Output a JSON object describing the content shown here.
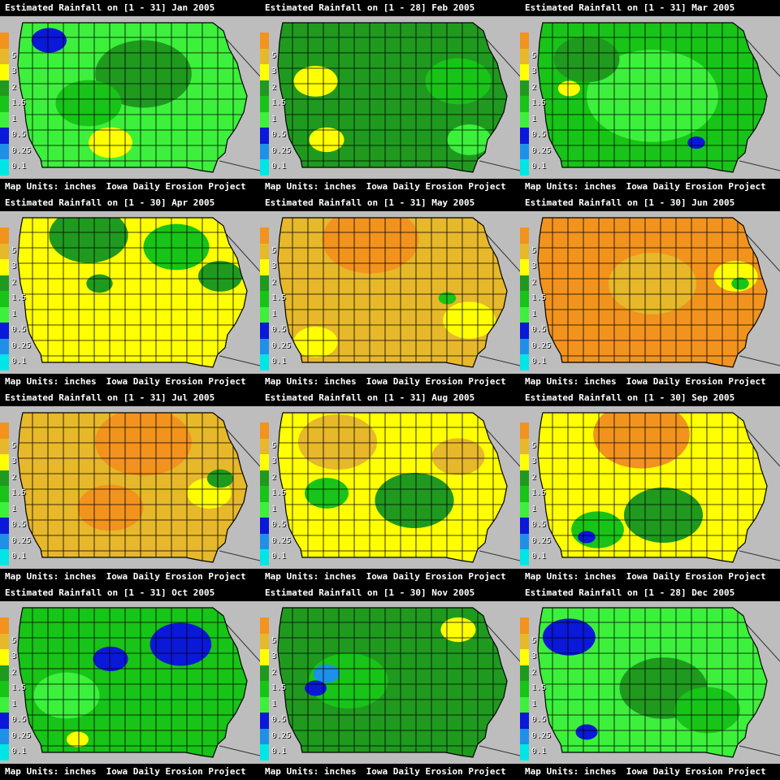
{
  "legend": {
    "levels": [
      {
        "label": "",
        "color": "#f2931e"
      },
      {
        "label": "5",
        "color": "#e6b82a"
      },
      {
        "label": "3",
        "color": "#ffff00"
      },
      {
        "label": "2",
        "color": "#1f9a1f"
      },
      {
        "label": "1.5",
        "color": "#17c417"
      },
      {
        "label": "1",
        "color": "#3cf03c"
      },
      {
        "label": "0.5",
        "color": "#0a18d8"
      },
      {
        "label": "0.25",
        "color": "#1e90e8"
      },
      {
        "label": "0.1",
        "color": "#00e6e6"
      }
    ]
  },
  "footer": {
    "units": "Map Units: inches",
    "project": "Iowa Daily Erosion Project"
  },
  "colors": {
    "background": "#000000",
    "outside": "#bdbdbd",
    "county_lines": "#000000"
  },
  "panels": [
    {
      "title": "Estimated Rainfall on [1 - 31] Jan 2005",
      "dominant": "#3cf03c",
      "patches": [
        [
          "#1f9a1f",
          0.55,
          0.35,
          0.22
        ],
        [
          "#0a18d8",
          0.12,
          0.12,
          0.08
        ],
        [
          "#ffff00",
          0.4,
          0.82,
          0.1
        ],
        [
          "#17c417",
          0.3,
          0.55,
          0.15
        ]
      ]
    },
    {
      "title": "Estimated Rainfall on [1 - 28] Feb 2005",
      "dominant": "#1f9a1f",
      "patches": [
        [
          "#17c417",
          0.8,
          0.4,
          0.15
        ],
        [
          "#ffff00",
          0.15,
          0.4,
          0.1
        ],
        [
          "#ffff00",
          0.2,
          0.8,
          0.08
        ],
        [
          "#3cf03c",
          0.85,
          0.8,
          0.1
        ]
      ]
    },
    {
      "title": "Estimated Rainfall on [1 - 31] Mar 2005",
      "dominant": "#17c417",
      "patches": [
        [
          "#3cf03c",
          0.5,
          0.5,
          0.3
        ],
        [
          "#1f9a1f",
          0.2,
          0.25,
          0.15
        ],
        [
          "#ffff00",
          0.12,
          0.45,
          0.05
        ],
        [
          "#0a18d8",
          0.7,
          0.82,
          0.04
        ]
      ]
    },
    {
      "title": "Estimated Rainfall on [1 - 30] Apr 2005",
      "dominant": "#ffff00",
      "patches": [
        [
          "#1f9a1f",
          0.3,
          0.12,
          0.18
        ],
        [
          "#17c417",
          0.7,
          0.2,
          0.15
        ],
        [
          "#1f9a1f",
          0.9,
          0.4,
          0.1
        ],
        [
          "#1f9a1f",
          0.35,
          0.45,
          0.06
        ]
      ]
    },
    {
      "title": "Estimated Rainfall on [1 - 31] May 2005",
      "dominant": "#e6b82a",
      "patches": [
        [
          "#f2931e",
          0.4,
          0.15,
          0.22
        ],
        [
          "#ffff00",
          0.85,
          0.7,
          0.12
        ],
        [
          "#ffff00",
          0.15,
          0.85,
          0.1
        ],
        [
          "#17c417",
          0.75,
          0.55,
          0.04
        ]
      ]
    },
    {
      "title": "Estimated Rainfall on [1 - 30] Jun 2005",
      "dominant": "#f2931e",
      "patches": [
        [
          "#e6b82a",
          0.5,
          0.45,
          0.2
        ],
        [
          "#ffff00",
          0.88,
          0.4,
          0.1
        ],
        [
          "#17c417",
          0.9,
          0.45,
          0.04
        ]
      ]
    },
    {
      "title": "Estimated Rainfall on [1 - 31] Jul 2005",
      "dominant": "#e6b82a",
      "patches": [
        [
          "#f2931e",
          0.55,
          0.2,
          0.22
        ],
        [
          "#f2931e",
          0.4,
          0.65,
          0.15
        ],
        [
          "#ffff00",
          0.85,
          0.55,
          0.1
        ],
        [
          "#1f9a1f",
          0.9,
          0.45,
          0.06
        ]
      ]
    },
    {
      "title": "Estimated Rainfall on [1 - 31] Aug 2005",
      "dominant": "#ffff00",
      "patches": [
        [
          "#e6b82a",
          0.25,
          0.2,
          0.18
        ],
        [
          "#1f9a1f",
          0.6,
          0.6,
          0.18
        ],
        [
          "#17c417",
          0.2,
          0.55,
          0.1
        ],
        [
          "#e6b82a",
          0.8,
          0.3,
          0.12
        ]
      ]
    },
    {
      "title": "Estimated Rainfall on [1 - 30] Sep 2005",
      "dominant": "#ffff00",
      "patches": [
        [
          "#f2931e",
          0.45,
          0.15,
          0.22
        ],
        [
          "#1f9a1f",
          0.55,
          0.7,
          0.18
        ],
        [
          "#17c417",
          0.25,
          0.8,
          0.12
        ],
        [
          "#0a18d8",
          0.2,
          0.85,
          0.04
        ]
      ]
    },
    {
      "title": "Estimated Rainfall on [1 - 31] Oct 2005",
      "dominant": "#17c417",
      "patches": [
        [
          "#0a18d8",
          0.72,
          0.25,
          0.14
        ],
        [
          "#0a18d8",
          0.4,
          0.35,
          0.08
        ],
        [
          "#3cf03c",
          0.2,
          0.6,
          0.15
        ],
        [
          "#ffff00",
          0.25,
          0.9,
          0.05
        ]
      ]
    },
    {
      "title": "Estimated Rainfall on [1 - 30] Nov 2005",
      "dominant": "#1f9a1f",
      "patches": [
        [
          "#17c417",
          0.3,
          0.5,
          0.18
        ],
        [
          "#1e90e8",
          0.2,
          0.45,
          0.06
        ],
        [
          "#0a18d8",
          0.15,
          0.55,
          0.05
        ],
        [
          "#ffff00",
          0.8,
          0.15,
          0.08
        ]
      ]
    },
    {
      "title": "Estimated Rainfall on [1 - 28] Dec 2005",
      "dominant": "#3cf03c",
      "patches": [
        [
          "#0a18d8",
          0.12,
          0.2,
          0.12
        ],
        [
          "#1f9a1f",
          0.55,
          0.55,
          0.2
        ],
        [
          "#17c417",
          0.75,
          0.7,
          0.15
        ],
        [
          "#0a18d8",
          0.2,
          0.85,
          0.05
        ]
      ]
    }
  ]
}
